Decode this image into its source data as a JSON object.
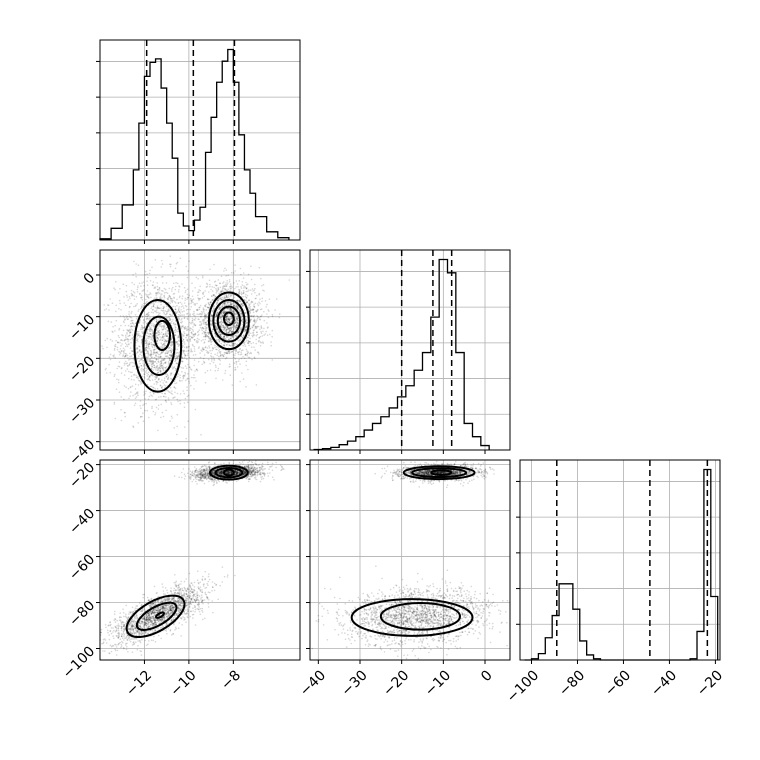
{
  "chart_data": {
    "type": "corner",
    "grid": true,
    "parameters": [
      {
        "range": [
          -14,
          -5
        ],
        "ticks": [
          -12,
          -10,
          -8
        ],
        "tick_labels": [
          "−12",
          "−10",
          "−8"
        ],
        "quantiles": [
          -11.9,
          -9.8,
          -7.95
        ],
        "hist": {
          "edges": [
            -14,
            -13.5,
            -13,
            -12.5,
            -12.25,
            -12,
            -11.75,
            -11.5,
            -11.25,
            -11,
            -10.75,
            -10.5,
            -10.25,
            -10,
            -9.75,
            -9.5,
            -9.25,
            -9,
            -8.75,
            -8.5,
            -8.25,
            -8,
            -7.75,
            -7.5,
            -7.25,
            -7,
            -6.5,
            -6,
            -5.5
          ],
          "counts": [
            0.1,
            1.0,
            3.0,
            6.0,
            10.0,
            14.0,
            15.2,
            15.5,
            13.0,
            10.0,
            7.0,
            2.3,
            1.2,
            0.8,
            1.7,
            2.8,
            7.5,
            10.5,
            13.5,
            15.3,
            16.3,
            13.5,
            9.0,
            6.0,
            4.0,
            2.0,
            0.7,
            0.2
          ]
        }
      },
      {
        "range": [
          -42,
          6
        ],
        "ticks": [
          -40,
          -30,
          -20,
          -10,
          0
        ],
        "tick_labels": [
          "−40",
          "−30",
          "−20",
          "−10",
          "0"
        ],
        "quantiles": [
          -20,
          -12.5,
          -8
        ],
        "hist": {
          "edges": [
            -41,
            -39,
            -37,
            -35,
            -33,
            -31,
            -29,
            -27,
            -25,
            -23,
            -21,
            -19,
            -17,
            -15,
            -13,
            -11,
            -9,
            -7,
            -5,
            -3,
            -1,
            1
          ],
          "counts": [
            0.1,
            0.3,
            0.6,
            1.2,
            2.0,
            3.0,
            4.5,
            6.0,
            7.5,
            9.5,
            12.0,
            14.5,
            18.0,
            22.0,
            30.0,
            43.0,
            40.0,
            22.0,
            6.0,
            3.0,
            1.0
          ]
        }
      },
      {
        "range": [
          -105,
          -18
        ],
        "ticks": [
          -100,
          -80,
          -60,
          -40,
          -20
        ],
        "tick_labels": [
          "−100",
          "−80",
          "−60",
          "−40",
          "−20"
        ],
        "quantiles": [
          -89,
          -48.5,
          -23.5
        ],
        "hist": {
          "edges": [
            -103,
            -100,
            -97,
            -94,
            -91,
            -88,
            -85,
            -82,
            -79,
            -76,
            -73,
            -70,
            -67,
            -64,
            -61,
            -58,
            -55,
            -52,
            -49,
            -46,
            -43,
            -40,
            -37,
            -34,
            -31,
            -28,
            -25,
            -22,
            -19
          ],
          "counts": [
            0,
            0.2,
            1.0,
            3.5,
            7.0,
            12.0,
            12.0,
            8.0,
            3.0,
            0.8,
            0.2,
            0,
            0,
            0,
            0,
            0,
            0,
            0,
            0,
            0,
            0,
            0,
            0,
            0,
            0.2,
            4.5,
            30.0,
            10.0
          ]
        }
      }
    ],
    "pairs": [
      {
        "row": 1,
        "col": 0,
        "clusters": [
          {
            "cx": -11.4,
            "cy": -16,
            "sx": 0.75,
            "sy": 6.2,
            "rho": 0,
            "n": 1900
          },
          {
            "cx": -8.2,
            "cy": -11,
            "sx": 0.6,
            "sy": 3.6,
            "rho": 0,
            "n": 1900
          }
        ],
        "contours": [
          {
            "cx": -11.4,
            "cy": -17,
            "rx": 1.05,
            "ry": 11.0,
            "rot": 0,
            "shade": "#ffffff"
          },
          {
            "cx": -11.35,
            "cy": -17,
            "rx": 0.7,
            "ry": 7.0,
            "rot": 0,
            "shade": "#e8e8e8"
          },
          {
            "cx": -11.2,
            "cy": -14.5,
            "rx": 0.35,
            "ry": 3.5,
            "rot": 0,
            "shade": "#d4d4d4"
          },
          {
            "cx": -8.2,
            "cy": -11,
            "rx": 0.9,
            "ry": 6.8,
            "rot": 0,
            "shade": "#ffffff"
          },
          {
            "cx": -8.2,
            "cy": -11,
            "rx": 0.7,
            "ry": 5.0,
            "rot": 0,
            "shade": "#e6e6e6"
          },
          {
            "cx": -8.2,
            "cy": -11,
            "rx": 0.5,
            "ry": 3.4,
            "rot": 0,
            "shade": "#a8a8a8"
          },
          {
            "cx": -8.2,
            "cy": -10.5,
            "rx": 0.22,
            "ry": 1.5,
            "rot": 0,
            "shade": "#111111"
          }
        ]
      },
      {
        "row": 2,
        "col": 0,
        "clusters": [
          {
            "cx": -11.4,
            "cy": -85,
            "sx": 0.85,
            "sy": 5.0,
            "rho": 0.75,
            "n": 1900
          },
          {
            "cx": -8.2,
            "cy": -23.5,
            "sx": 0.6,
            "sy": 1.3,
            "rho": 0.3,
            "n": 1700
          }
        ],
        "contours": [
          {
            "cx": -11.5,
            "cy": -86,
            "rx": 1.45,
            "ry": 6.5,
            "rot": -30,
            "shade": "#ffffff"
          },
          {
            "cx": -11.45,
            "cy": -86,
            "rx": 1.0,
            "ry": 4.0,
            "rot": -30,
            "shade": "#ececec"
          },
          {
            "cx": -11.3,
            "cy": -85.5,
            "rx": 0.2,
            "ry": 0.8,
            "rot": -30,
            "shade": "#888888"
          },
          {
            "cx": -8.2,
            "cy": -23.5,
            "rx": 0.85,
            "ry": 3.0,
            "rot": 0,
            "shade": "#ffffff"
          },
          {
            "cx": -8.2,
            "cy": -23.5,
            "rx": 0.6,
            "ry": 2.0,
            "rot": 0,
            "shade": "#dddddd"
          },
          {
            "cx": -8.2,
            "cy": -23.5,
            "rx": 0.22,
            "ry": 1.3,
            "rot": 0,
            "shade": "#111111"
          }
        ]
      },
      {
        "row": 2,
        "col": 1,
        "clusters": [
          {
            "cx": -16,
            "cy": -86,
            "sx": 7.0,
            "sy": 4.8,
            "rho": 0.15,
            "n": 1900
          },
          {
            "cx": -11,
            "cy": -23.5,
            "sx": 3.5,
            "sy": 1.3,
            "rho": 0.1,
            "n": 1700
          }
        ],
        "contours": [
          {
            "cx": -17.5,
            "cy": -86.5,
            "rx": 14.5,
            "ry": 8.0,
            "rot": 0,
            "shade": "#ffffff"
          },
          {
            "cx": -15.5,
            "cy": -86,
            "rx": 9.5,
            "ry": 5.8,
            "rot": 0,
            "shade": "#eeeeee"
          },
          {
            "cx": -11,
            "cy": -23.5,
            "rx": 8.5,
            "ry": 2.8,
            "rot": 0,
            "shade": "#ffffff"
          },
          {
            "cx": -11,
            "cy": -23.5,
            "rx": 6.5,
            "ry": 1.9,
            "rot": 0,
            "shade": "#e4e4e4"
          },
          {
            "cx": -10.5,
            "cy": -23.5,
            "rx": 2.4,
            "ry": 1.0,
            "rot": 0,
            "shade": "#1a1a1a"
          }
        ]
      }
    ]
  }
}
